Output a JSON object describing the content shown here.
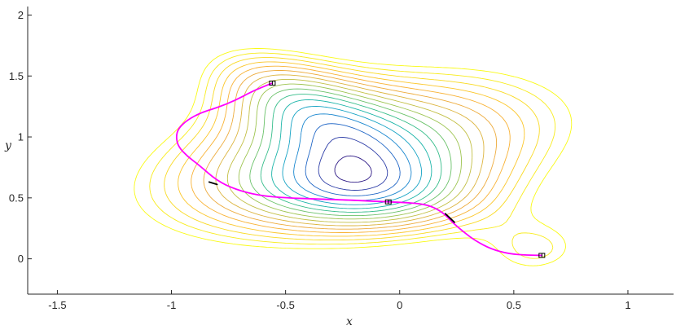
{
  "chart_data": {
    "type": "contour",
    "xlabel": "x",
    "ylabel": "y",
    "xlim": [
      -1.63,
      1.2
    ],
    "ylim": [
      -0.29,
      2.07
    ],
    "x_ticks": [
      -1.5,
      -1,
      -0.5,
      0,
      0.5,
      1
    ],
    "x_tick_labels": [
      "-1.5",
      "-1",
      "-0.5",
      "0",
      "0.5",
      "1"
    ],
    "y_ticks": [
      0,
      0.5,
      1,
      1.5,
      2
    ],
    "y_tick_labels": [
      "0",
      "0.5",
      "1",
      "1.5",
      "2"
    ],
    "grid": false,
    "contour_colors": [
      "#2e1a86",
      "#2f3fa8",
      "#2167c6",
      "#1a87cf",
      "#16a3c4",
      "#1ab4a8",
      "#36bd8a",
      "#6bc26a",
      "#9dc450",
      "#c2bf44",
      "#dcb43e",
      "#edab3c",
      "#f8b235",
      "#fbc62a",
      "#f9da22",
      "#f8ec1e",
      "#f9fa14"
    ],
    "minima": [
      {
        "x": -0.558,
        "y": 1.442
      },
      {
        "x": -0.05,
        "y": 0.467
      },
      {
        "x": 0.623,
        "y": 0.028
      }
    ],
    "path": {
      "color": "#ff00ff",
      "points": [
        [
          -0.558,
          1.442
        ],
        [
          -0.6,
          1.41
        ],
        [
          -0.65,
          1.37
        ],
        [
          -0.72,
          1.3
        ],
        [
          -0.8,
          1.24
        ],
        [
          -0.87,
          1.2
        ],
        [
          -0.93,
          1.14
        ],
        [
          -0.97,
          1.07
        ],
        [
          -0.98,
          1.0
        ],
        [
          -0.97,
          0.92
        ],
        [
          -0.93,
          0.84
        ],
        [
          -0.88,
          0.77
        ],
        [
          -0.8,
          0.64
        ],
        [
          -0.72,
          0.57
        ],
        [
          -0.62,
          0.52
        ],
        [
          -0.5,
          0.5
        ],
        [
          -0.35,
          0.49
        ],
        [
          -0.2,
          0.48
        ],
        [
          -0.05,
          0.467
        ],
        [
          0.05,
          0.46
        ],
        [
          0.13,
          0.44
        ],
        [
          0.19,
          0.38
        ],
        [
          0.23,
          0.3
        ],
        [
          0.28,
          0.22
        ],
        [
          0.33,
          0.15
        ],
        [
          0.4,
          0.08
        ],
        [
          0.48,
          0.04
        ],
        [
          0.56,
          0.03
        ],
        [
          0.623,
          0.028
        ]
      ],
      "highlighted_segments": [
        [
          [
            -0.835,
            0.63
          ],
          [
            -0.8,
            0.61
          ]
        ],
        [
          [
            0.2,
            0.37
          ],
          [
            0.24,
            0.3
          ]
        ]
      ]
    }
  }
}
